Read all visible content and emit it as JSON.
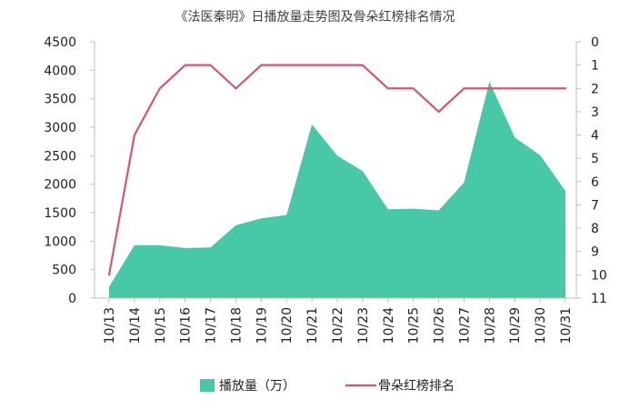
{
  "chart_data": {
    "type": "area+line",
    "title": "《法医秦明》日播放量走势图及骨朵红榜排名情况",
    "categories": [
      "10/13",
      "10/14",
      "10/15",
      "10/16",
      "10/17",
      "10/18",
      "10/19",
      "10/20",
      "10/21",
      "10/22",
      "10/23",
      "10/24",
      "10/25",
      "10/26",
      "10/27",
      "10/28",
      "10/29",
      "10/30",
      "10/31"
    ],
    "y_left": {
      "ticks": [
        0,
        500,
        1000,
        1500,
        2000,
        2500,
        3000,
        3500,
        4000,
        4500
      ],
      "ylim": [
        0,
        4500
      ]
    },
    "y_right": {
      "ticks": [
        0,
        1,
        2,
        3,
        4,
        5,
        6,
        7,
        8,
        9,
        10,
        11
      ],
      "ylim": [
        0,
        11
      ],
      "inverted": true
    },
    "series": [
      {
        "name": "播放量（万）",
        "type": "area",
        "axis": "left",
        "color": "#47c9a8",
        "values": [
          200,
          930,
          930,
          880,
          890,
          1280,
          1400,
          1460,
          3050,
          2500,
          2230,
          1560,
          1570,
          1540,
          2030,
          3800,
          2820,
          2510,
          1880
        ]
      },
      {
        "name": "骨朵红榜排名",
        "type": "line",
        "axis": "right",
        "color": "#d9546e",
        "values": [
          10,
          4,
          2,
          1,
          1,
          2,
          1,
          1,
          1,
          1,
          1,
          2,
          2,
          3,
          2,
          2,
          2,
          2,
          2
        ]
      }
    ],
    "legend": {
      "position": "bottom",
      "items": [
        {
          "label": "播放量（万）",
          "marker": "area",
          "color": "#47c9a8"
        },
        {
          "label": "骨朵红榜排名",
          "marker": "line",
          "color": "#d9546e"
        }
      ]
    },
    "grid": false
  }
}
